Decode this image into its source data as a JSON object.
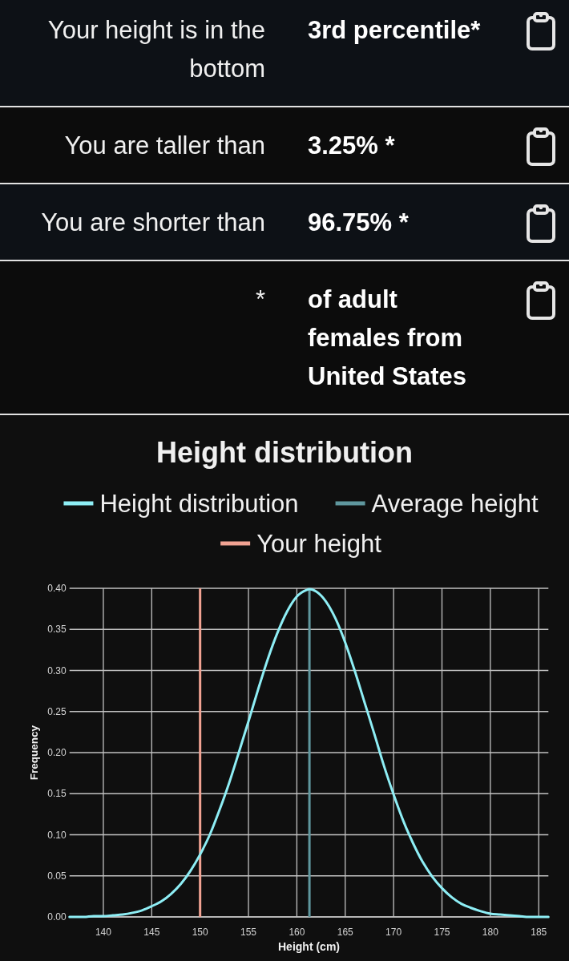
{
  "chart_data": [
    {
      "type": "other",
      "annotations": [
        "Your height is in the bottom",
        "3rd percentile*",
        "You are taller than",
        "3.25% *",
        "You are shorter than",
        "96.75% *",
        "*",
        "of adult females from United States"
      ]
    },
    {
      "type": "line",
      "title": "Height distribution",
      "xlabel": "Height (cm)",
      "ylabel": "Frequency",
      "x": [
        136.5,
        137,
        138,
        139,
        140,
        141,
        142,
        143,
        144,
        145,
        146,
        147,
        148,
        149,
        150,
        151,
        152,
        153,
        154,
        155,
        156,
        157,
        158,
        159,
        160,
        161,
        161.3,
        162,
        163,
        164,
        165,
        166,
        167,
        168,
        169,
        170,
        171,
        172,
        173,
        174,
        175,
        176,
        177,
        178,
        179,
        180,
        181,
        182,
        183,
        184,
        185,
        186
      ],
      "series": [
        {
          "name": "Height distribution",
          "color": "#8eeef5",
          "values": [
            0.0,
            0.0,
            0.0,
            0.001,
            0.001,
            0.002,
            0.003,
            0.005,
            0.008,
            0.013,
            0.019,
            0.028,
            0.04,
            0.056,
            0.076,
            0.1,
            0.13,
            0.163,
            0.2,
            0.238,
            0.277,
            0.314,
            0.346,
            0.372,
            0.39,
            0.398,
            0.399,
            0.396,
            0.384,
            0.363,
            0.334,
            0.299,
            0.261,
            0.223,
            0.184,
            0.149,
            0.117,
            0.09,
            0.067,
            0.049,
            0.035,
            0.024,
            0.016,
            0.011,
            0.007,
            0.004,
            0.003,
            0.002,
            0.001,
            0.0,
            0.0,
            0.0
          ]
        }
      ],
      "ref_lines": [
        {
          "axis": "x",
          "value": 161.3,
          "label": "Average height",
          "color": "#5f979e"
        },
        {
          "axis": "x",
          "value": 150,
          "label": "Your height",
          "color": "#f2a393"
        }
      ],
      "xlim": [
        136.5,
        186
      ],
      "xticks": [
        140,
        145,
        150,
        155,
        160,
        165,
        170,
        175,
        180,
        185
      ],
      "ylim": [
        0,
        0.4
      ],
      "yticks": [
        {
          "value": 0,
          "label": "0.00"
        },
        {
          "value": 0.05,
          "label": "0.05"
        },
        {
          "value": 0.1,
          "label": "0.10"
        },
        {
          "value": 0.15,
          "label": "0.15"
        },
        {
          "value": 0.2,
          "label": "0.20"
        },
        {
          "value": 0.25,
          "label": "0.25"
        },
        {
          "value": 0.3,
          "label": "0.30"
        },
        {
          "value": 0.35,
          "label": "0.35"
        },
        {
          "value": 0.4,
          "label": "0.40"
        }
      ],
      "grid": true,
      "legend": "top"
    }
  ]
}
